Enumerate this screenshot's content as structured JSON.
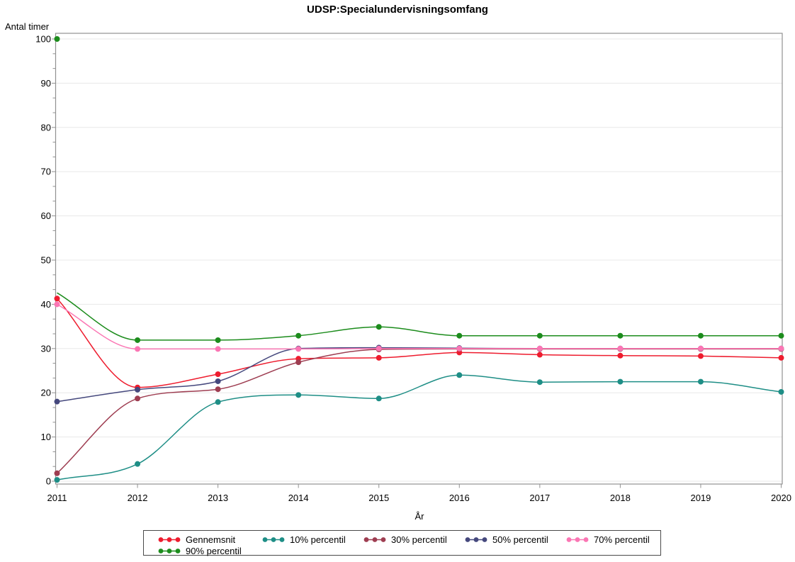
{
  "page": {
    "title": "UDSP:Specialundervisningsomfang"
  },
  "chart_data": {
    "type": "line",
    "title": "UDSP:Specialundervisningsomfang",
    "ylabel": "Antal timer",
    "xlabel": "År",
    "x": [
      2011,
      2012,
      2013,
      2014,
      2015,
      2016,
      2017,
      2018,
      2019,
      2020
    ],
    "ylim": [
      0,
      100
    ],
    "ytick_interval": 10,
    "yticks": [
      0,
      10,
      20,
      30,
      40,
      50,
      60,
      70,
      80,
      90,
      100
    ],
    "grid": "horizontal-light",
    "legend_position": "bottom-box-two-rows",
    "marker": "filled-circle",
    "series": [
      {
        "name": "Gennemsnit",
        "color": "#ee1c2e",
        "values": [
          41.3,
          21.2,
          24.2,
          27.7,
          27.9,
          29.1,
          28.6,
          28.4,
          28.3,
          27.9
        ]
      },
      {
        "name": "10% percentil",
        "color": "#1e8e86",
        "values": [
          0.3,
          3.9,
          17.9,
          19.5,
          18.7,
          24.0,
          22.4,
          22.5,
          22.5,
          20.2
        ]
      },
      {
        "name": "30% percentil",
        "color": "#9e3d51",
        "values": [
          1.8,
          18.7,
          20.8,
          26.9,
          29.8,
          29.9,
          29.9,
          29.9,
          29.9,
          29.9
        ]
      },
      {
        "name": "50% percentil",
        "color": "#45487d",
        "values": [
          18.0,
          20.7,
          22.6,
          30.0,
          30.2,
          30.1,
          30.0,
          30.0,
          30.0,
          30.0
        ]
      },
      {
        "name": "70% percentil",
        "color": "#fb76b4",
        "values": [
          40.0,
          29.9,
          29.9,
          29.9,
          30.0,
          30.0,
          30.0,
          30.0,
          30.0,
          30.0
        ]
      },
      {
        "name": "90% percentil",
        "color": "#1c8c1c",
        "values": [
          100,
          31.9,
          31.9,
          32.9,
          34.9,
          32.9,
          32.9,
          32.9,
          32.9,
          32.9
        ],
        "line_start_y": 42.6
      }
    ]
  },
  "colors": {
    "gridline": "#e8e8e8",
    "frame": "#919191",
    "text": "#000000",
    "legend_border": "#4a4a4a"
  }
}
